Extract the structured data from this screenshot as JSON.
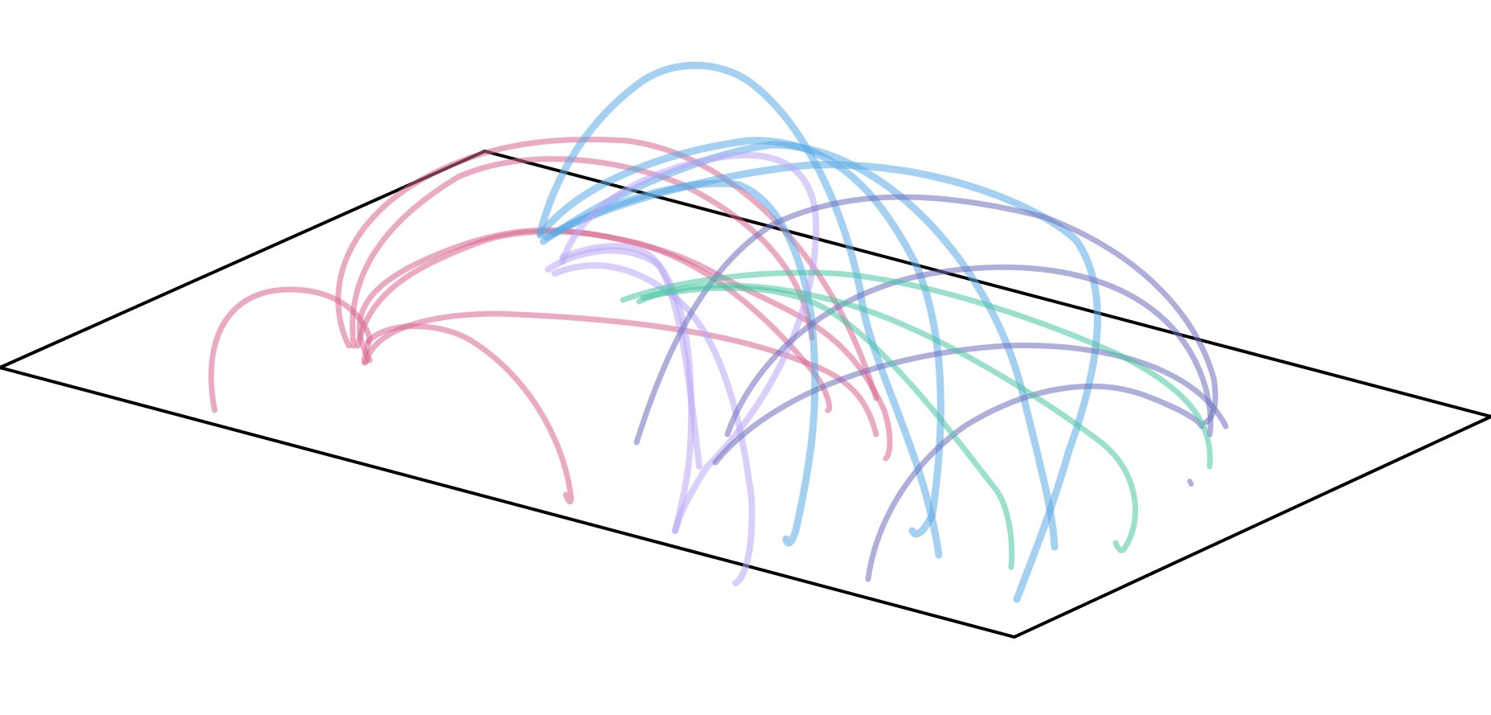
{
  "diagram": {
    "colors": {
      "plane": "#000000",
      "pink": "#d9668f",
      "sky": "#5aaae6",
      "lavender": "#bba8f7",
      "indigo": "#6b6fbd",
      "teal": "#48c4a4"
    },
    "groups": [
      {
        "name": "pink",
        "arc_count": 7
      },
      {
        "name": "sky",
        "arc_count": 5
      },
      {
        "name": "lavender",
        "arc_count": 4
      },
      {
        "name": "indigo",
        "arc_count": 5
      },
      {
        "name": "teal",
        "arc_count": 3
      }
    ]
  }
}
